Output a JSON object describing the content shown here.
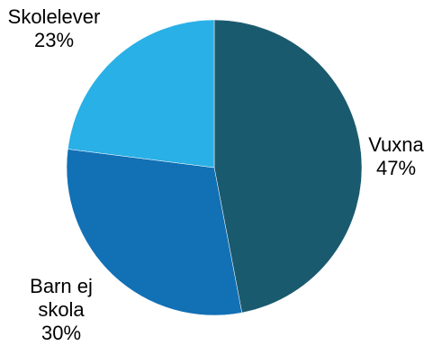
{
  "chart_data": {
    "type": "pie",
    "title": "",
    "slices": [
      {
        "label_lines": [
          "Vuxna"
        ],
        "percent_label": "47%",
        "value": 47,
        "color": "#1a5a6e"
      },
      {
        "label_lines": [
          "Barn ej",
          "skola"
        ],
        "percent_label": "30%",
        "value": 30,
        "color": "#1270b5"
      },
      {
        "label_lines": [
          "Skolelever"
        ],
        "percent_label": "23%",
        "value": 23,
        "color": "#29b0e6"
      }
    ],
    "start_angle_deg": 0,
    "direction": "clockwise",
    "legend": "none",
    "labels_position": "outside"
  }
}
